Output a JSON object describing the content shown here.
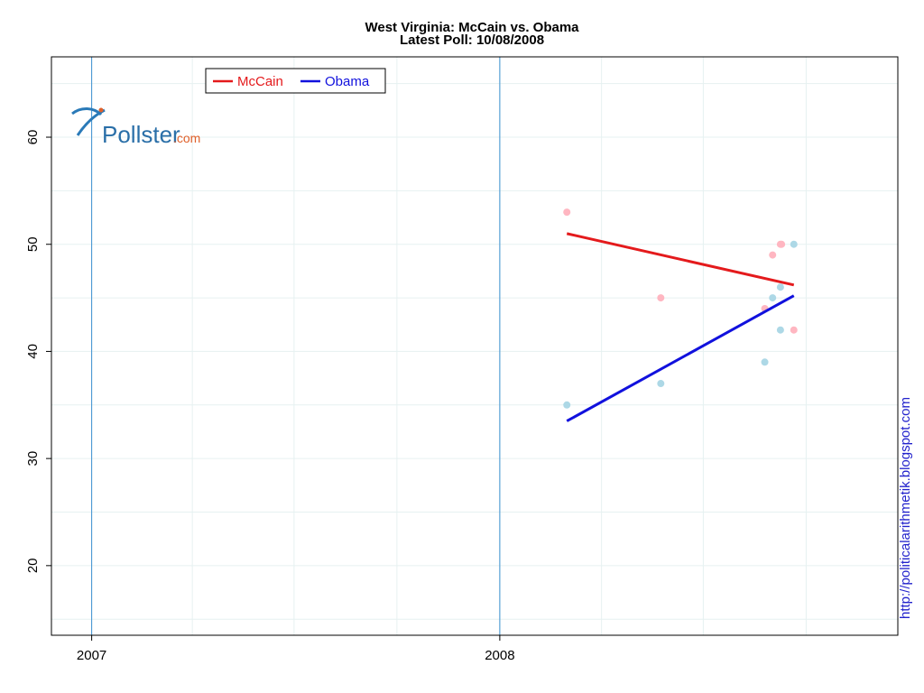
{
  "chart_data": {
    "type": "scatter",
    "title": "West Virginia: McCain vs. Obama",
    "subtitle": "Latest Poll: 10/08/2008",
    "xlabel": "",
    "ylabel": "",
    "x_ticks": [
      "2007",
      "2008"
    ],
    "y_ticks": [
      20,
      30,
      40,
      50,
      60
    ],
    "xlim": [
      "2006-11-26",
      "2008-12-22"
    ],
    "ylim": [
      13.5,
      67.5
    ],
    "grid": true,
    "legend_position": "top-left",
    "series": [
      {
        "name": "McCain",
        "color": "#e41a1c",
        "point_color": "#ffb6c1",
        "points": [
          {
            "x": "2008-03-01",
            "y": 53
          },
          {
            "x": "2008-05-24",
            "y": 45
          },
          {
            "x": "2008-08-25",
            "y": 44
          },
          {
            "x": "2008-09-01",
            "y": 49
          },
          {
            "x": "2008-09-08",
            "y": 50
          },
          {
            "x": "2008-09-09",
            "y": 50
          },
          {
            "x": "2008-09-20",
            "y": 42
          }
        ],
        "trend": [
          {
            "x": "2008-03-01",
            "y": 51
          },
          {
            "x": "2008-09-20",
            "y": 46.2
          }
        ]
      },
      {
        "name": "Obama",
        "color": "#1111dd",
        "point_color": "#add8e6",
        "points": [
          {
            "x": "2008-03-01",
            "y": 35
          },
          {
            "x": "2008-05-24",
            "y": 37
          },
          {
            "x": "2008-08-25",
            "y": 39
          },
          {
            "x": "2008-09-01",
            "y": 45
          },
          {
            "x": "2008-09-08",
            "y": 46
          },
          {
            "x": "2008-09-08",
            "y": 42
          },
          {
            "x": "2008-09-20",
            "y": 50
          }
        ],
        "trend": [
          {
            "x": "2008-03-01",
            "y": 33.5
          },
          {
            "x": "2008-09-20",
            "y": 45.2
          }
        ]
      }
    ]
  },
  "logo": {
    "text": "Pollster",
    "suffix": ".com"
  },
  "watermark": "http://politicalarithmetik.blogspot.com"
}
